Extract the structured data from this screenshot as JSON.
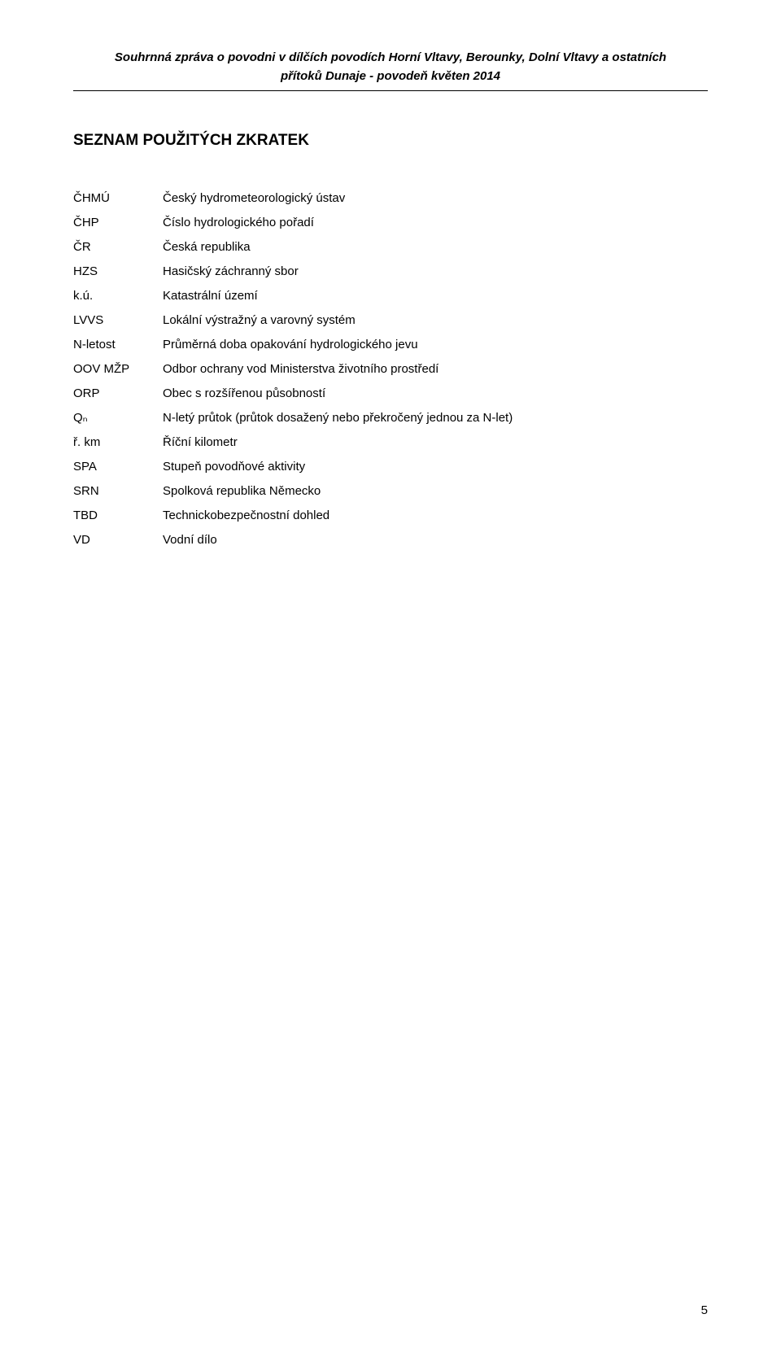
{
  "header": {
    "line1": "Souhrnná zpráva o povodni v dílčích povodích Horní Vltavy, Berounky, Dolní Vltavy a ostatních",
    "line2": "přítoků Dunaje - povodeň květen 2014"
  },
  "section_title": "SEZNAM POUŽITÝCH ZKRATEK",
  "abbreviations": [
    {
      "key": "ČHMÚ",
      "val": "Český hydrometeorologický ústav"
    },
    {
      "key": "ČHP",
      "val": "Číslo hydrologického pořadí"
    },
    {
      "key": "ČR",
      "val": "Česká republika"
    },
    {
      "key": "HZS",
      "val": "Hasičský záchranný sbor"
    },
    {
      "key": "k.ú.",
      "val": "Katastrální území"
    },
    {
      "key": "LVVS",
      "val": "Lokální výstražný a varovný systém"
    },
    {
      "key": "N-letost",
      "val": "Průměrná doba opakování hydrologického jevu"
    },
    {
      "key": "OOV MŽP",
      "val": "Odbor ochrany vod Ministerstva životního prostředí"
    },
    {
      "key": "ORP",
      "val": "Obec s rozšířenou působností"
    },
    {
      "key": "Qₙ",
      "val": "N-letý průtok (průtok dosažený nebo překročený jednou za N-let)"
    },
    {
      "key": "ř. km",
      "val": "Říční kilometr"
    },
    {
      "key": "SPA",
      "val": "Stupeň povodňové aktivity"
    },
    {
      "key": "SRN",
      "val": "Spolková republika Německo"
    },
    {
      "key": "TBD",
      "val": "Technickobezpečnostní dohled"
    },
    {
      "key": "VD",
      "val": "Vodní dílo"
    }
  ],
  "page_number": "5"
}
